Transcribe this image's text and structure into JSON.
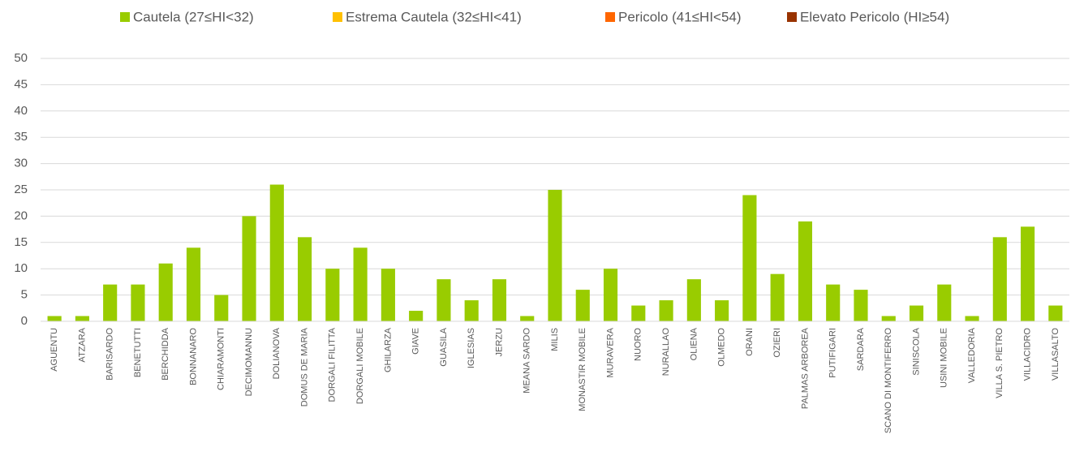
{
  "chart_data": {
    "type": "bar",
    "stacked": true,
    "categories": [
      "AGUENTU",
      "ATZARA",
      "BARISARDO",
      "BENETUTTI",
      "BERCHIDDA",
      "BONNANARO",
      "CHIARAMONTI",
      "DECIMOMANNU",
      "DOLIANOVA",
      "DOMUS DE MARIA",
      "DORGALI FILITTA",
      "DORGALI MOBILE",
      "GHILARZA",
      "GIAVE",
      "GUASILA",
      "IGLESIAS",
      "JERZU",
      "MEANA SARDO",
      "MILIS",
      "MONASTIR MOBILE",
      "MURAVERA",
      "NUORO",
      "NURALLAO",
      "OLIENA",
      "OLMEDO",
      "ORANI",
      "OZIERI",
      "PALMAS ARBOREA",
      "PUTIFIGARI",
      "SARDARA",
      "SCANO DI MONTIFERRO",
      "SINISCOLA",
      "USINI MOBILE",
      "VALLEDORIA",
      "VILLA S. PIETRO",
      "VILLACIDRO",
      "VILLASALTO"
    ],
    "series": [
      {
        "name": "Cautela (27≤HI<32)",
        "color": "#99cc00",
        "values": [
          1,
          1,
          7,
          7,
          11,
          14,
          5,
          20,
          26,
          16,
          10,
          14,
          10,
          2,
          8,
          4,
          8,
          1,
          25,
          6,
          10,
          3,
          4,
          8,
          4,
          24,
          9,
          19,
          7,
          6,
          1,
          3,
          7,
          1,
          16,
          18,
          3
        ]
      },
      {
        "name": "Estrema Cautela (32≤HI<41)",
        "color": "#ffc000",
        "values": [
          0,
          0,
          0,
          0,
          0,
          0,
          0,
          0,
          0,
          0,
          0,
          0,
          0,
          0,
          0,
          0,
          0,
          0,
          0,
          0,
          0,
          0,
          0,
          0,
          0,
          0,
          0,
          0,
          0,
          0,
          0,
          0,
          0,
          0,
          0,
          0,
          0
        ]
      },
      {
        "name": "Pericolo (41≤HI<54)",
        "color": "#ff6600",
        "values": [
          0,
          0,
          0,
          0,
          0,
          0,
          0,
          0,
          0,
          0,
          0,
          0,
          0,
          0,
          0,
          0,
          0,
          0,
          0,
          0,
          0,
          0,
          0,
          0,
          0,
          0,
          0,
          0,
          0,
          0,
          0,
          0,
          0,
          0,
          0,
          0,
          0
        ]
      },
      {
        "name": "Elevato Pericolo (HI≥54)",
        "color": "#993300",
        "values": [
          0,
          0,
          0,
          0,
          0,
          0,
          0,
          0,
          0,
          0,
          0,
          0,
          0,
          0,
          0,
          0,
          0,
          0,
          0,
          0,
          0,
          0,
          0,
          0,
          0,
          0,
          0,
          0,
          0,
          0,
          0,
          0,
          0,
          0,
          0,
          0,
          0
        ]
      }
    ],
    "ylim": [
      0,
      50
    ],
    "yticks": [
      0,
      5,
      10,
      15,
      20,
      25,
      30,
      35,
      40,
      45,
      50
    ],
    "grid": true,
    "legend": "top"
  }
}
